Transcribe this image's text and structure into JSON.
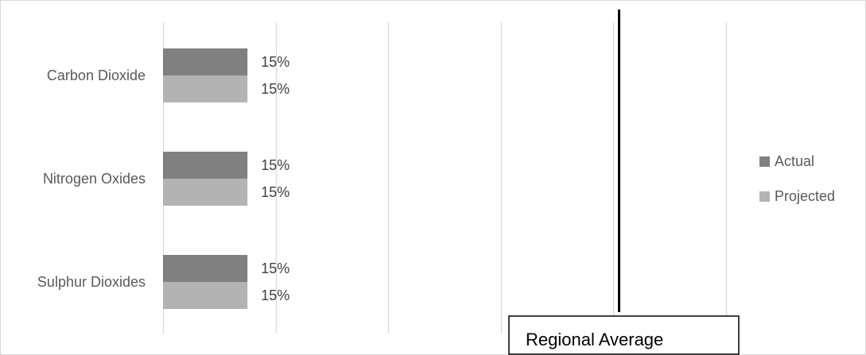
{
  "chart_data": {
    "type": "bar",
    "orientation": "horizontal",
    "categories": [
      "Carbon Dioxide",
      "Nitrogen Oxides",
      "Sulphur Dioxides"
    ],
    "series": [
      {
        "name": "Actual",
        "values": [
          15,
          15,
          15
        ],
        "color": "#808080"
      },
      {
        "name": "Projected",
        "values": [
          15,
          15,
          15
        ],
        "color": "#b3b3b3"
      }
    ],
    "data_labels": [
      [
        "15%",
        "15%",
        "15%"
      ],
      [
        "15%",
        "15%",
        "15%"
      ]
    ],
    "value_unit": "%",
    "xlim": [
      0,
      100
    ],
    "grid_step": 20,
    "reference_line": {
      "value": 81,
      "color": "#000000"
    },
    "annotation": {
      "text": "Regional Average"
    },
    "title": "",
    "xlabel": "",
    "ylabel": "",
    "grid": true,
    "axis_tick_labels_shown": false,
    "legend_position": "right",
    "gridline_color": "#d9d9d9"
  }
}
